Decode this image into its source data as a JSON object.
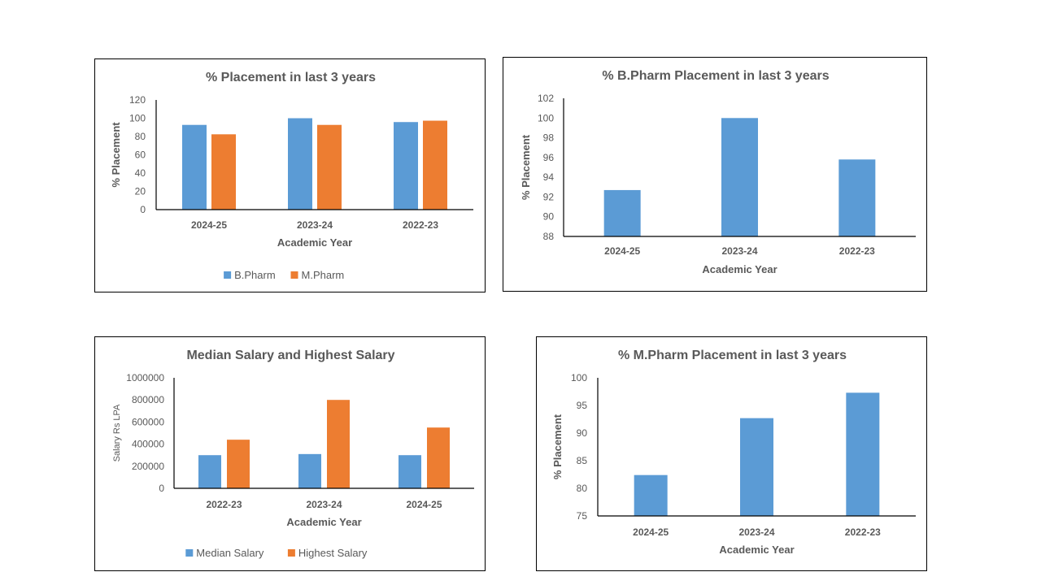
{
  "colors": {
    "blue": "#5B9BD5",
    "orange": "#ED7D31",
    "text": "#595959",
    "axis": "#000000"
  },
  "chart_data": [
    {
      "id": "p1",
      "type": "bar",
      "title": "% Placement in last 3 years",
      "xlabel": "Academic Year",
      "ylabel": "% Placement",
      "categories": [
        "2024-25",
        "2023-24",
        "2022-23"
      ],
      "series": [
        {
          "name": "B.Pharm",
          "color": "#5B9BD5",
          "values": [
            92.7,
            100,
            95.8
          ]
        },
        {
          "name": "M.Pharm",
          "color": "#ED7D31",
          "values": [
            82.4,
            92.7,
            97.3
          ]
        }
      ],
      "ylim": [
        0,
        120
      ],
      "yticks": [
        0,
        20,
        40,
        60,
        80,
        100,
        120
      ],
      "grid": false,
      "legend": "bottom"
    },
    {
      "id": "p2",
      "type": "bar",
      "title": "% B.Pharm Placement in last 3 years",
      "xlabel": "Academic Year",
      "ylabel": "% Placement",
      "categories": [
        "2024-25",
        "2023-24",
        "2022-23"
      ],
      "series": [
        {
          "name": "B.Pharm",
          "color": "#5B9BD5",
          "values": [
            92.7,
            100,
            95.8
          ]
        }
      ],
      "ylim": [
        88,
        102
      ],
      "yticks": [
        88,
        90,
        92,
        94,
        96,
        98,
        100,
        102
      ],
      "grid": false,
      "legend": "none"
    },
    {
      "id": "p3",
      "type": "bar",
      "title": "Median Salary and Highest Salary",
      "xlabel": "Academic Year",
      "ylabel": "Salary Rs LPA",
      "categories": [
        "2022-23",
        "2023-24",
        "2024-25"
      ],
      "series": [
        {
          "name": "Median Salary",
          "color": "#5B9BD5",
          "values": [
            300000,
            310000,
            300000
          ]
        },
        {
          "name": "Highest Salary",
          "color": "#ED7D31",
          "values": [
            440000,
            800000,
            550000
          ]
        }
      ],
      "ylim": [
        0,
        1000000
      ],
      "yticks": [
        0,
        200000,
        400000,
        600000,
        800000,
        1000000
      ],
      "grid": false,
      "legend": "bottom"
    },
    {
      "id": "p4",
      "type": "bar",
      "title": "% M.Pharm Placement in last 3 years",
      "xlabel": "Academic Year",
      "ylabel": "% Placement",
      "categories": [
        "2024-25",
        "2023-24",
        "2022-23"
      ],
      "series": [
        {
          "name": "M.Pharm",
          "color": "#5B9BD5",
          "values": [
            82.4,
            92.7,
            97.3
          ]
        }
      ],
      "ylim": [
        75,
        100
      ],
      "yticks": [
        75,
        80,
        85,
        90,
        95,
        100
      ],
      "grid": false,
      "legend": "none"
    }
  ]
}
